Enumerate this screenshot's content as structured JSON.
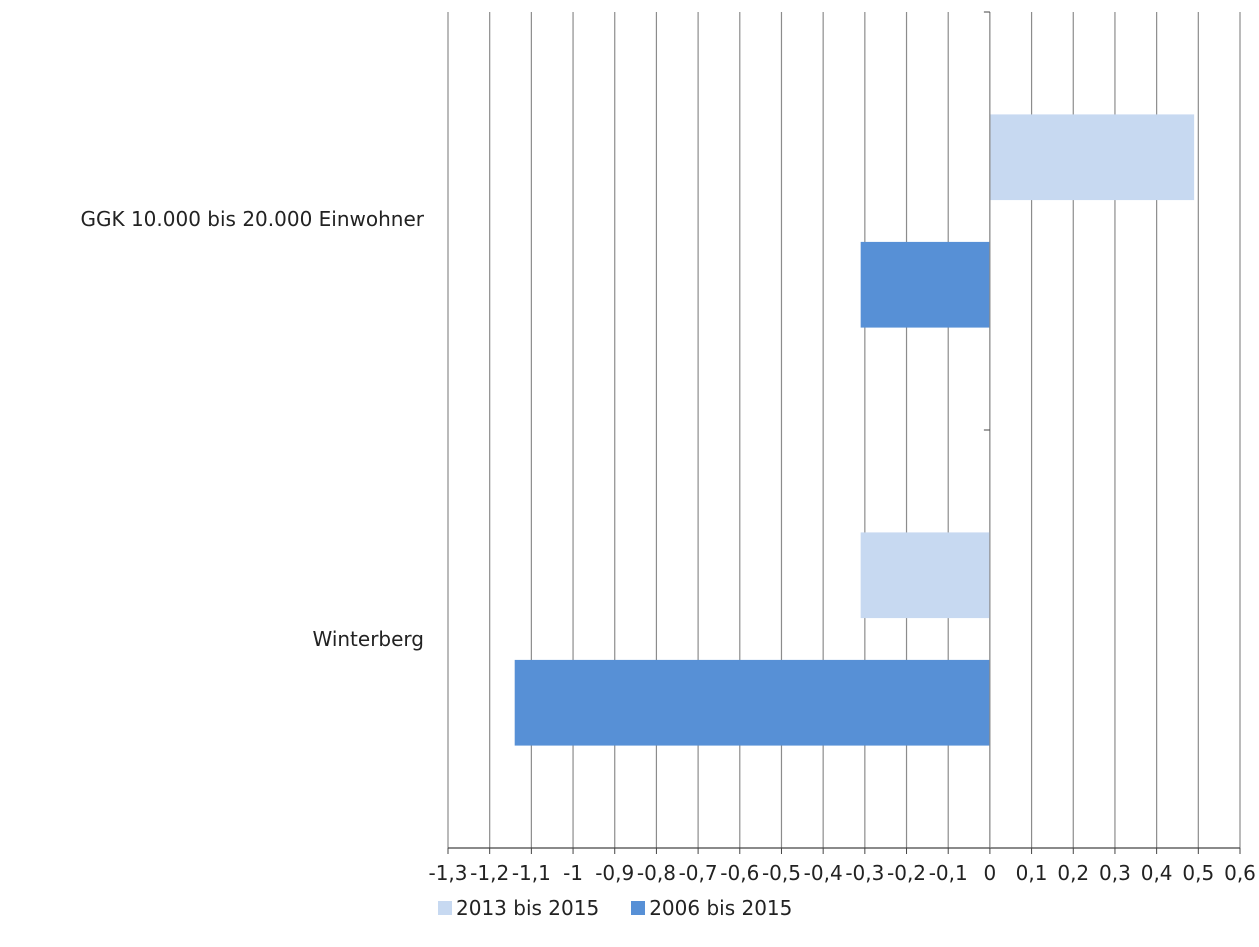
{
  "chart_data": {
    "type": "bar",
    "orientation": "horizontal",
    "categories": [
      "GGK 10.000 bis 20.000 Einwohner",
      "Winterberg"
    ],
    "series": [
      {
        "name": "2013 bis 2015",
        "color": "#c7d9f1",
        "values": [
          0.49,
          -0.31
        ]
      },
      {
        "name": "2006 bis 2015",
        "color": "#5790d6",
        "values": [
          -0.31,
          -1.14
        ]
      }
    ],
    "xlim": [
      -1.3,
      0.6
    ],
    "xticks": [
      -1.3,
      -1.2,
      -1.1,
      -1,
      -0.9,
      -0.8,
      -0.7,
      -0.6,
      -0.5,
      -0.4,
      -0.3,
      -0.2,
      -0.1,
      0,
      0.1,
      0.2,
      0.3,
      0.4,
      0.5,
      0.6
    ],
    "xtick_labels": [
      "-1,3",
      "-1,2",
      "-1,1",
      "-1",
      "-0,9",
      "-0,8",
      "-0,7",
      "-0,6",
      "-0,5",
      "-0,4",
      "-0,3",
      "-0,2",
      "-0,1",
      "0",
      "0,1",
      "0,2",
      "0,3",
      "0,4",
      "0,5",
      "0,6"
    ],
    "grid": true,
    "legend_position": "bottom",
    "title": "",
    "xlabel": "",
    "ylabel": ""
  }
}
